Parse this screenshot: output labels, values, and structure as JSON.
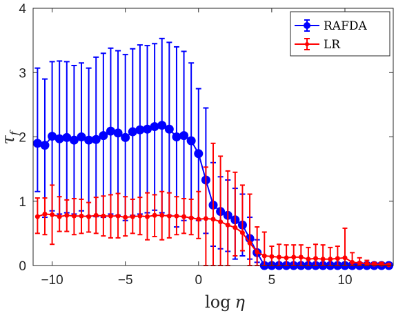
{
  "chart_data": {
    "type": "line",
    "x_label_main": "log",
    "x_label_symbol": "η",
    "y_label_main": "τ",
    "y_label_sub": "f",
    "xlim": [
      -11.3,
      13.3
    ],
    "ylim": [
      0,
      4
    ],
    "x_ticks": [
      -10,
      -5,
      0,
      5,
      10
    ],
    "y_ticks": [
      0,
      1,
      2,
      3,
      4
    ],
    "legend_position": "top-right",
    "grid": false,
    "series": [
      {
        "name": "RAFDA",
        "color": "#0000ff",
        "x": [
          -11,
          -10.5,
          -10,
          -9.5,
          -9,
          -8.5,
          -8,
          -7.5,
          -7,
          -6.5,
          -6,
          -5.5,
          -5,
          -4.5,
          -4,
          -3.5,
          -3,
          -2.5,
          -2,
          -1.5,
          -1,
          -0.5,
          0,
          0.5,
          1,
          1.5,
          2,
          2.5,
          3,
          3.5,
          4,
          4.5,
          5,
          5.5,
          6,
          6.5,
          7,
          7.5,
          8,
          8.5,
          9,
          9.5,
          10,
          10.5,
          11,
          11.5,
          12,
          12.5,
          13
        ],
        "y": [
          1.9,
          1.87,
          2.01,
          1.97,
          1.99,
          1.95,
          2.0,
          1.95,
          1.96,
          2.02,
          2.09,
          2.06,
          1.99,
          2.08,
          2.11,
          2.12,
          2.16,
          2.18,
          2.12,
          2.0,
          2.02,
          1.94,
          1.74,
          1.33,
          0.94,
          0.84,
          0.78,
          0.71,
          0.63,
          0.42,
          0.2,
          0.0,
          0.0,
          0.0,
          0.0,
          0.0,
          0.0,
          0.0,
          0.0,
          0.0,
          0.0,
          0.0,
          0.0,
          0.0,
          0.0,
          0.0,
          0.0,
          0.0,
          0.0
        ],
        "err_low": [
          1.15,
          0.75,
          0.85,
          0.8,
          0.82,
          0.8,
          0.85,
          0.77,
          0.76,
          0.75,
          0.8,
          0.78,
          0.7,
          0.78,
          0.8,
          0.82,
          0.86,
          0.82,
          0.78,
          0.6,
          0.7,
          0.74,
          0.7,
          0.5,
          0.3,
          0.26,
          0.22,
          0.1,
          0.15,
          0.1,
          0.05,
          0.0,
          0.0,
          0.0,
          0.0,
          0.0,
          0.0,
          0.0,
          0.0,
          0.0,
          0.0,
          0.0,
          0.0,
          0.0,
          0.0,
          0.0,
          0.0,
          0.0,
          0.0
        ],
        "err_high": [
          3.07,
          2.9,
          3.17,
          3.18,
          3.17,
          3.11,
          3.15,
          3.07,
          3.24,
          3.3,
          3.38,
          3.34,
          3.28,
          3.37,
          3.43,
          3.42,
          3.45,
          3.53,
          3.47,
          3.4,
          3.33,
          3.15,
          2.75,
          2.45,
          1.6,
          1.38,
          1.33,
          1.2,
          1.11,
          0.75,
          0.4,
          0.0,
          0.0,
          0.0,
          0.0,
          0.0,
          0.0,
          0.0,
          0.0,
          0.0,
          0.0,
          0.0,
          0.0,
          0.0,
          0.0,
          0.0,
          0.0,
          0.0,
          0.0
        ]
      },
      {
        "name": "LR",
        "color": "#ff0000",
        "x": [
          -11,
          -10.5,
          -10,
          -9.5,
          -9,
          -8.5,
          -8,
          -7.5,
          -7,
          -6.5,
          -6,
          -5.5,
          -5,
          -4.5,
          -4,
          -3.5,
          -3,
          -2.5,
          -2,
          -1.5,
          -1,
          -0.5,
          0,
          0.5,
          1,
          1.5,
          2,
          2.5,
          3,
          3.5,
          4,
          4.5,
          5,
          5.5,
          6,
          6.5,
          7,
          7.5,
          8,
          8.5,
          9,
          9.5,
          10,
          10.5,
          11,
          11.5,
          12,
          12.5,
          13
        ],
        "y": [
          0.76,
          0.8,
          0.79,
          0.76,
          0.78,
          0.77,
          0.77,
          0.76,
          0.78,
          0.77,
          0.77,
          0.77,
          0.75,
          0.76,
          0.77,
          0.76,
          0.78,
          0.78,
          0.77,
          0.77,
          0.76,
          0.74,
          0.72,
          0.73,
          0.72,
          0.68,
          0.63,
          0.59,
          0.51,
          0.35,
          0.21,
          0.15,
          0.14,
          0.13,
          0.12,
          0.13,
          0.13,
          0.1,
          0.11,
          0.1,
          0.1,
          0.11,
          0.12,
          0.05,
          0.04,
          0.03,
          0.02,
          0.02,
          0.01
        ],
        "err_low": [
          0.5,
          0.48,
          0.33,
          0.53,
          0.53,
          0.48,
          0.5,
          0.52,
          0.5,
          0.46,
          0.43,
          0.43,
          0.46,
          0.5,
          0.48,
          0.4,
          0.45,
          0.4,
          0.43,
          0.48,
          0.5,
          0.48,
          0.42,
          0.0,
          0.0,
          0.0,
          0.0,
          0.15,
          0.23,
          0.0,
          0.0,
          0.0,
          0.0,
          0.0,
          0.0,
          0.0,
          0.0,
          0.0,
          0.0,
          0.0,
          0.0,
          0.0,
          0.0,
          0.0,
          0.0,
          0.0,
          0.0,
          0.0,
          0.0
        ],
        "err_high": [
          1.05,
          1.05,
          1.25,
          1.07,
          1.02,
          1.04,
          1.03,
          0.98,
          1.06,
          1.08,
          1.1,
          1.12,
          1.07,
          1.03,
          1.06,
          1.13,
          1.1,
          1.15,
          1.13,
          1.07,
          1.04,
          1.03,
          1.15,
          1.53,
          1.9,
          1.7,
          1.47,
          1.45,
          1.25,
          1.11,
          0.6,
          0.52,
          0.3,
          0.33,
          0.32,
          0.32,
          0.32,
          0.28,
          0.33,
          0.32,
          0.28,
          0.3,
          0.58,
          0.2,
          0.12,
          0.08,
          0.05,
          0.05,
          0.03
        ]
      }
    ]
  }
}
